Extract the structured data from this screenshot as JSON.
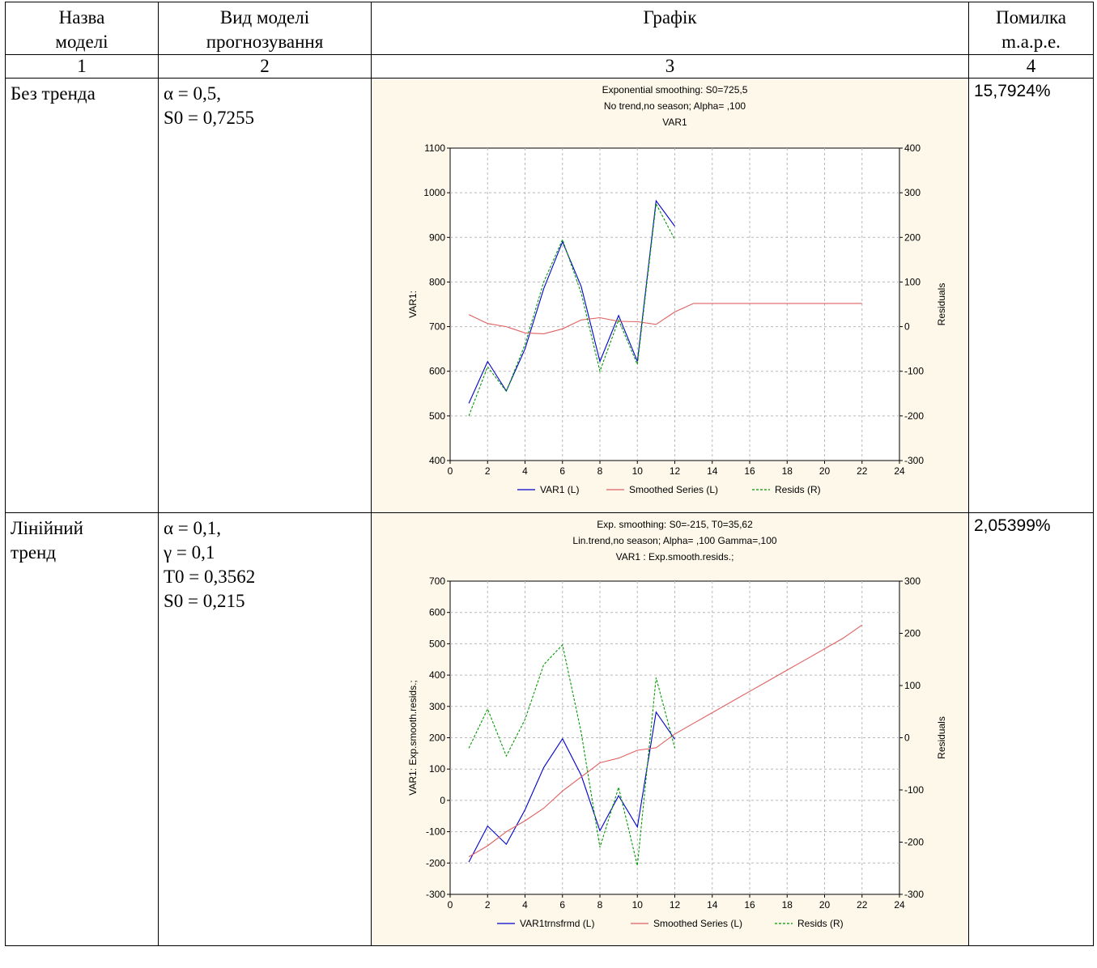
{
  "header": {
    "col1": "Назва\nмоделі",
    "col2": "Вид моделі\nпрогнозування",
    "col3": "Графік",
    "col4": "Помилка\nm.a.p.e."
  },
  "numbers": [
    "1",
    "2",
    "3",
    "4"
  ],
  "rows": [
    {
      "name": "Без тренда",
      "params": "α = 0,5,\nS0 = 0,7255",
      "mape": "15,7924%"
    },
    {
      "name": "Лінійний\nтренд",
      "params": "α = 0,1,\n γ = 0,1\nT0 = 0,3562\nS0 = 0,215",
      "mape": "2,05399%"
    }
  ],
  "colors": {
    "var": "#0000cc",
    "smoothed": "#e06060",
    "resids": "#009900",
    "chart_bg": "#fdf8ea"
  },
  "chart_data": [
    {
      "type": "line",
      "title": "Exponential smoothing:  S0=725,5",
      "subtitle": "No trend,no season; Alpha=  ,100",
      "subtitle2": "VAR1",
      "ylabel": "VAR1:",
      "y2label": "Residuals",
      "xlim": [
        0,
        24
      ],
      "ylim": [
        400,
        1100
      ],
      "y2lim": [
        -300,
        400
      ],
      "xticks": [
        "0",
        "2",
        "4",
        "6",
        "8",
        "10",
        "12",
        "14",
        "16",
        "18",
        "20",
        "22",
        "24"
      ],
      "yticks": [
        "400",
        "500",
        "600",
        "700",
        "800",
        "900",
        "1000",
        "1100"
      ],
      "y2ticks": [
        "-300",
        "-200",
        "-100",
        "0",
        "100",
        "200",
        "300",
        "400"
      ],
      "grid": true,
      "legend": [
        "VAR1 (L)",
        "Smoothed Series (L)",
        "Resids (R)"
      ],
      "series": [
        {
          "name": "VAR1 (L)",
          "axis": "left",
          "x": [
            1,
            2,
            3,
            4,
            5,
            6,
            7,
            8,
            9,
            10,
            11,
            12
          ],
          "values": [
            528,
            622,
            556,
            650,
            785,
            890,
            790,
            622,
            725,
            622,
            982,
            925
          ]
        },
        {
          "name": "Smoothed Series (L)",
          "axis": "left",
          "x": [
            1,
            2,
            3,
            4,
            5,
            6,
            7,
            8,
            9,
            10,
            11,
            12,
            13,
            14,
            15,
            16,
            17,
            18,
            19,
            20,
            21,
            22
          ],
          "values": [
            727,
            707,
            700,
            686,
            684,
            695,
            715,
            720,
            712,
            711,
            705,
            733,
            752,
            752,
            752,
            752,
            752,
            752,
            752,
            752,
            752,
            752
          ]
        },
        {
          "name": "Resids (R)",
          "axis": "right",
          "x": [
            1,
            2,
            3,
            4,
            5,
            6,
            7,
            8,
            9,
            10,
            11,
            12
          ],
          "values": [
            -200,
            -90,
            -145,
            -40,
            100,
            195,
            75,
            -100,
            15,
            -85,
            275,
            195
          ]
        }
      ]
    },
    {
      "type": "line",
      "title": "Exp. smoothing:  S0=-215, T0=35,62",
      "subtitle": "Lin.trend,no season; Alpha=  ,100 Gamma=,100",
      "subtitle2": "VAR1     : Exp.smooth.resids.;",
      "ylabel": "VAR1: Exp.smooth.resids.;",
      "y2label": "Residuals",
      "xlim": [
        0,
        24
      ],
      "ylim": [
        -300,
        700
      ],
      "y2lim": [
        -300,
        300
      ],
      "xticks": [
        "0",
        "2",
        "4",
        "6",
        "8",
        "10",
        "12",
        "14",
        "16",
        "18",
        "20",
        "22",
        "24"
      ],
      "yticks": [
        "-300",
        "-200",
        "-100",
        "0",
        "100",
        "200",
        "300",
        "400",
        "500",
        "600",
        "700"
      ],
      "y2ticks": [
        "-300",
        "-200",
        "-100",
        "0",
        "100",
        "200",
        "300"
      ],
      "grid": true,
      "legend": [
        "VAR1trnsfrmd (L)",
        "Smoothed Series (L)",
        "Resids (R)"
      ],
      "series": [
        {
          "name": "VAR1trnsfrmd (L)",
          "axis": "left",
          "x": [
            1,
            2,
            3,
            4,
            5,
            6,
            7,
            8,
            9,
            10,
            11,
            12
          ],
          "values": [
            -197,
            -82,
            -140,
            -30,
            105,
            197,
            80,
            -97,
            15,
            -85,
            282,
            195
          ]
        },
        {
          "name": "Smoothed Series (L)",
          "axis": "left",
          "x": [
            1,
            2,
            3,
            4,
            5,
            6,
            7,
            8,
            9,
            10,
            11,
            12,
            13,
            14,
            15,
            16,
            17,
            18,
            19,
            20,
            21,
            22
          ],
          "values": [
            -180,
            -145,
            -100,
            -65,
            -25,
            30,
            75,
            120,
            135,
            160,
            168,
            212,
            246,
            280,
            314,
            348,
            382,
            416,
            450,
            484,
            518,
            560
          ]
        },
        {
          "name": "Resids (R)",
          "axis": "right",
          "x": [
            1,
            2,
            3,
            4,
            5,
            6,
            7,
            8,
            9,
            10,
            11,
            12
          ],
          "values": [
            -20,
            55,
            -35,
            35,
            140,
            178,
            10,
            -210,
            -95,
            -245,
            115,
            -20
          ]
        }
      ]
    }
  ]
}
